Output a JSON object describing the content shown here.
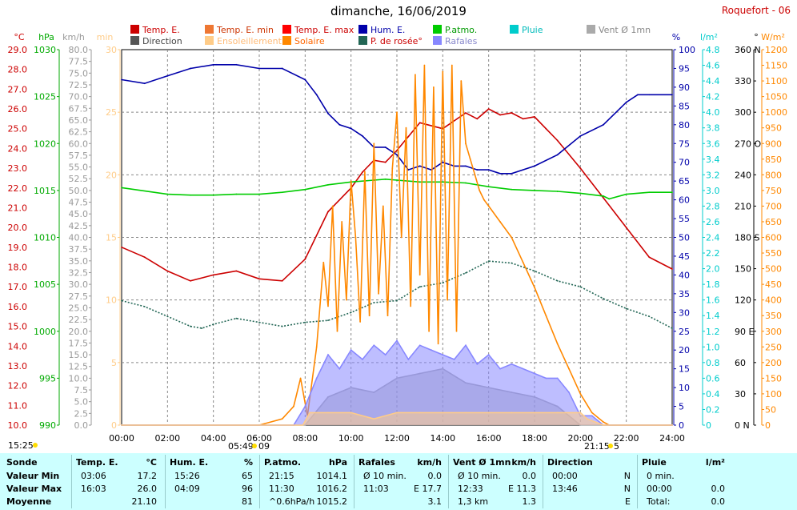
{
  "title": "dimanche, 16/06/2019",
  "station": "Roquefort - 06",
  "legend": [
    {
      "label": "Temp. E.",
      "color": "#cc0000",
      "text_color": "#cc0000"
    },
    {
      "label": "Temp. E. min",
      "color": "#ee7733",
      "text_color": "#cc3300"
    },
    {
      "label": "Temp. E. max",
      "color": "#ff0000",
      "text_color": "#cc0000"
    },
    {
      "label": "Hum. E.",
      "color": "#0000aa",
      "text_color": "#0000aa"
    },
    {
      "label": "P.atmo.",
      "color": "#00cc00",
      "text_color": "#009900"
    },
    {
      "label": "Pluie",
      "color": "#00cccc",
      "text_color": "#00bbbb"
    },
    {
      "label": "Vent Ø 1mn",
      "color": "#aaaaaa",
      "text_color": "#888888"
    },
    {
      "label": "Direction",
      "color": "#555555",
      "text_color": "#444444"
    },
    {
      "label": "Ensoleillement",
      "color": "#ffcc88",
      "text_color": "#ffbb77"
    },
    {
      "label": "Solaire",
      "color": "#ff8800",
      "text_color": "#ff6600"
    },
    {
      "label": "P. de rosée°",
      "color": "#226655",
      "text_color": "#cc0000"
    },
    {
      "label": "Rafales",
      "color": "#8888ff",
      "text_color": "#8888cc"
    }
  ],
  "sun": {
    "left_time": "15:25",
    "rise": "05:49",
    "rise_suffix": "09",
    "set": "21:15",
    "set_suffix": "5"
  },
  "chart_data": {
    "type": "line",
    "x_ticks": [
      "00:00",
      "02:00",
      "04:00",
      "06:00",
      "08:00",
      "10:00",
      "12:00",
      "14:00",
      "16:00",
      "18:00",
      "20:00",
      "22:00",
      "24:00"
    ],
    "axes": {
      "temp": {
        "title": "°C",
        "range": [
          10.0,
          29.0
        ],
        "ticks": [
          "10.0",
          "11.0",
          "12.0",
          "13.0",
          "14.0",
          "15.0",
          "16.0",
          "17.0",
          "18.0",
          "19.0",
          "20.0",
          "21.0",
          "22.0",
          "23.0",
          "24.0",
          "25.0",
          "26.0",
          "27.0",
          "28.0",
          "29.0"
        ],
        "color": "#cc0000"
      },
      "pressure": {
        "title": "hPa",
        "range": [
          990,
          1030
        ],
        "ticks": [
          "990",
          "995",
          "1000",
          "1005",
          "1010",
          "1015",
          "1020",
          "1025",
          "1030"
        ],
        "color": "#00aa00"
      },
      "wind": {
        "title": "km/h",
        "range": [
          0,
          80
        ],
        "ticks": [
          "0.0",
          "2.5",
          "5.0",
          "7.5",
          "10.0",
          "12.5",
          "15.0",
          "17.5",
          "20.0",
          "22.5",
          "25.0",
          "27.5",
          "30.0",
          "32.5",
          "35.0",
          "37.5",
          "40.0",
          "42.5",
          "45.0",
          "47.5",
          "50.0",
          "52.5",
          "55.0",
          "57.5",
          "60.0",
          "62.5",
          "65.0",
          "67.5",
          "70.0",
          "72.5",
          "75.0",
          "77.5",
          "80.0"
        ],
        "color": "#999999"
      },
      "sunshine": {
        "title": "min",
        "range": [
          0,
          30
        ],
        "ticks": [
          "0",
          "5",
          "10",
          "15",
          "20",
          "25",
          "30"
        ],
        "color": "#ffcc88"
      },
      "humidity": {
        "title": "%",
        "range": [
          0,
          100
        ],
        "ticks": [
          "0",
          "5",
          "10",
          "15",
          "20",
          "25",
          "30",
          "35",
          "40",
          "45",
          "50",
          "55",
          "60",
          "65",
          "70",
          "75",
          "80",
          "85",
          "90",
          "95",
          "100"
        ],
        "color": "#0000aa"
      },
      "rain": {
        "title": "l/m²",
        "range": [
          0,
          4.8
        ],
        "ticks": [
          "0",
          "0.2",
          "0.4",
          "0.6",
          "0.8",
          "1.0",
          "1.2",
          "1.4",
          "1.6",
          "1.8",
          "2.0",
          "2.2",
          "2.4",
          "2.6",
          "2.8",
          "3.0",
          "3.2",
          "3.4",
          "3.6",
          "3.8",
          "4.0",
          "4.2",
          "4.4",
          "4.6",
          "4.8"
        ],
        "color": "#00cccc"
      },
      "direction": {
        "title": "°",
        "ticks": [
          "0 N",
          "30",
          "60",
          "90 E",
          "120",
          "150",
          "180 S",
          "210",
          "240",
          "270 O",
          "300",
          "330",
          "360 N"
        ],
        "color": "#000000"
      },
      "solar": {
        "title": "W/m²",
        "range": [
          0,
          1200
        ],
        "ticks": [
          "0",
          "50",
          "100",
          "150",
          "200",
          "250",
          "300",
          "350",
          "400",
          "450",
          "500",
          "550",
          "600",
          "650",
          "700",
          "750",
          "800",
          "850",
          "900",
          "950",
          "1000",
          "1050",
          "1100",
          "1150",
          "1200"
        ],
        "color": "#ff8800"
      }
    },
    "series": [
      {
        "name": "Temp. E.",
        "axis": "temp",
        "color": "#cc0000",
        "x": [
          0,
          1,
          2,
          3,
          4,
          5,
          6,
          7,
          8,
          9,
          10,
          10.5,
          11,
          11.5,
          12,
          12.5,
          13,
          14,
          15,
          15.5,
          16,
          16.5,
          17,
          17.5,
          18,
          18.5,
          19,
          20,
          21,
          22,
          23,
          24
        ],
        "y": [
          19.0,
          18.5,
          17.8,
          17.3,
          17.6,
          17.8,
          17.4,
          17.3,
          18.4,
          20.8,
          22.0,
          22.8,
          23.4,
          23.3,
          23.9,
          24.6,
          25.3,
          25.0,
          25.8,
          25.5,
          26.0,
          25.7,
          25.8,
          25.5,
          25.6,
          25.0,
          24.4,
          23.0,
          21.5,
          20.0,
          18.5,
          17.9
        ]
      },
      {
        "name": "Hum. E.",
        "axis": "humidity",
        "color": "#0000aa",
        "x": [
          0,
          1,
          2,
          3,
          4,
          4.15,
          5,
          6,
          7,
          8,
          8.5,
          9,
          9.5,
          10,
          10.5,
          11,
          11.5,
          12,
          12.5,
          13,
          13.5,
          14,
          14.5,
          15,
          15.5,
          16,
          16.5,
          17,
          18,
          19,
          20,
          21,
          22,
          22.5,
          23,
          24
        ],
        "y": [
          92,
          91,
          93,
          95,
          96,
          96,
          96,
          95,
          95,
          92,
          88,
          83,
          80,
          79,
          77,
          74,
          74,
          72,
          68,
          69,
          68,
          70,
          69,
          69,
          68,
          68,
          67,
          67,
          69,
          72,
          77,
          80,
          86,
          88,
          88,
          88
        ]
      },
      {
        "name": "P.atmo.",
        "axis": "pressure",
        "color": "#00cc00",
        "x": [
          0,
          2,
          3,
          4,
          5,
          6,
          7,
          8,
          9,
          10,
          11,
          11.5,
          12,
          13,
          14,
          15,
          16,
          17,
          18,
          19,
          20,
          21,
          21.25,
          22,
          23,
          24
        ],
        "y": [
          1015.3,
          1014.6,
          1014.5,
          1014.5,
          1014.6,
          1014.6,
          1014.8,
          1015.1,
          1015.6,
          1015.9,
          1016.1,
          1016.2,
          1016.1,
          1015.9,
          1015.9,
          1015.8,
          1015.4,
          1015.1,
          1015.0,
          1014.9,
          1014.7,
          1014.4,
          1014.1,
          1014.6,
          1014.8,
          1014.8
        ]
      },
      {
        "name": "P. de rosée°",
        "axis": "temp",
        "color": "#226655",
        "x": [
          0,
          1,
          2,
          3,
          3.5,
          4,
          5,
          6,
          7,
          8,
          9,
          10,
          11,
          12,
          13,
          14,
          15,
          16,
          17,
          18,
          19,
          20,
          21,
          22,
          23,
          24
        ],
        "y": [
          16.3,
          16.0,
          15.5,
          15.0,
          14.9,
          15.1,
          15.4,
          15.2,
          15.0,
          15.2,
          15.3,
          15.7,
          16.2,
          16.3,
          17.0,
          17.2,
          17.7,
          18.3,
          18.2,
          17.8,
          17.3,
          17.0,
          16.4,
          15.9,
          15.5,
          14.9
        ]
      },
      {
        "name": "Solaire",
        "axis": "solar",
        "color": "#ff8800",
        "x": [
          0,
          6,
          7,
          7.5,
          7.8,
          8.1,
          8.5,
          8.8,
          9,
          9.2,
          9.4,
          9.6,
          9.8,
          10,
          10.2,
          10.4,
          10.6,
          10.8,
          11,
          11.2,
          11.4,
          11.6,
          11.8,
          12,
          12.2,
          12.4,
          12.6,
          12.8,
          13,
          13.2,
          13.4,
          13.6,
          13.8,
          14,
          14.2,
          14.4,
          14.6,
          14.8,
          15,
          15.2,
          15.4,
          15.6,
          15.8,
          16,
          16.5,
          17,
          17.5,
          18,
          18.5,
          19,
          19.5,
          20,
          20.5,
          21,
          21.25,
          24
        ],
        "y": [
          0,
          0,
          20,
          60,
          150,
          30,
          250,
          520,
          380,
          700,
          300,
          650,
          400,
          780,
          600,
          330,
          810,
          350,
          900,
          420,
          700,
          350,
          820,
          1000,
          600,
          950,
          380,
          1120,
          480,
          1150,
          300,
          1080,
          260,
          1130,
          400,
          1150,
          300,
          1100,
          900,
          850,
          800,
          750,
          720,
          700,
          650,
          600,
          520,
          440,
          350,
          260,
          180,
          100,
          40,
          10,
          0,
          0
        ]
      },
      {
        "name": "Vent Ø 1mn",
        "axis": "wind",
        "color": "#aaaaaa",
        "x": [
          0,
          8,
          8.5,
          9,
          10,
          11,
          12,
          13,
          14,
          15,
          16,
          17,
          18,
          19,
          19.5,
          20,
          24
        ],
        "y": [
          0,
          0,
          3,
          6,
          8,
          7,
          10,
          11,
          12,
          9,
          8,
          7,
          6,
          4,
          2,
          0,
          0
        ]
      },
      {
        "name": "Rafales",
        "axis": "wind",
        "color": "#8888ff",
        "x": [
          0,
          7.5,
          8,
          8.5,
          9,
          9.5,
          10,
          10.5,
          11,
          11.5,
          12,
          12.5,
          13,
          13.5,
          14,
          14.5,
          15,
          15.5,
          16,
          16.5,
          17,
          17.5,
          18,
          18.5,
          19,
          19.5,
          20,
          20.5,
          21,
          24
        ],
        "y": [
          0,
          0,
          4,
          10,
          15,
          12,
          16,
          14,
          17,
          15,
          18,
          14,
          17,
          16,
          15,
          14,
          17,
          13,
          15,
          12,
          13,
          12,
          11,
          10,
          10,
          7,
          2,
          2,
          0,
          0
        ]
      },
      {
        "name": "Ensoleillement",
        "axis": "sunshine",
        "color": "#ffcc88",
        "x": [
          0,
          7.9,
          8.2,
          9,
          10,
          11,
          12,
          13,
          14,
          15,
          16,
          17,
          18,
          19,
          20,
          20.3,
          21,
          24
        ],
        "y": [
          0,
          0,
          1,
          1,
          1,
          0.5,
          1,
          1,
          1,
          1,
          1,
          1,
          1,
          1,
          1,
          0.5,
          0,
          0
        ]
      }
    ]
  },
  "table": {
    "headers": [
      {
        "label": "Sonde"
      },
      {
        "label": "Temp. E.",
        "unit": "°C"
      },
      {
        "label": "Hum. E.",
        "unit": "%"
      },
      {
        "label": "P.atmo.",
        "unit": "hPa"
      },
      {
        "label": "Rafales",
        "unit": "km/h"
      },
      {
        "label": "Vent Ø 1mn",
        "unit": "km/h"
      },
      {
        "label": "Direction"
      },
      {
        "label": "Pluie",
        "unit": "l/m²"
      }
    ],
    "rows": [
      {
        "label": "Valeur Min",
        "temp_t": "03:06",
        "temp_v": "17.2",
        "hum_t": "15:26",
        "hum_v": "65",
        "p_t": "21:15",
        "p_v": "1014.1",
        "raf_t": "Ø 10 min.",
        "raf_v": "0.0",
        "vent_t": "Ø 10 min.",
        "vent_v": "0.0",
        "dir_t": "00:00",
        "dir_v": "N",
        "pl_t": "0 min.",
        "pl_v": ""
      },
      {
        "label": "Valeur Max",
        "temp_t": "16:03",
        "temp_v": "26.0",
        "hum_t": "04:09",
        "hum_v": "96",
        "p_t": "11:30",
        "p_v": "1016.2",
        "raf_t": "11:03",
        "raf_v": "E 17.7",
        "vent_t": "12:33",
        "vent_v": "E 11.3",
        "dir_t": "13:46",
        "dir_v": "N",
        "pl_t": "00:00",
        "pl_v": "0.0"
      },
      {
        "label": "Moyenne",
        "temp_t": "",
        "temp_v": "21.10",
        "hum_t": "",
        "hum_v": "81",
        "p_t": "^0.6hPa/h",
        "p_v": "1015.2",
        "raf_t": "",
        "raf_v": "3.1",
        "vent_t": "1,3 km",
        "vent_v": "1.3",
        "dir_t": "",
        "dir_v": "E",
        "pl_t": "Total:",
        "pl_v": "0.0"
      }
    ]
  }
}
